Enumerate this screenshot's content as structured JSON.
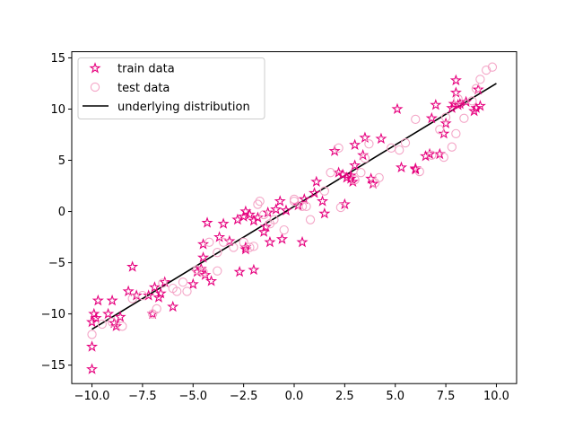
{
  "chart_data": {
    "type": "scatter",
    "title": "",
    "xlabel": "",
    "ylabel": "",
    "xlim": [
      -11.0,
      11.0
    ],
    "ylim": [
      -16.8,
      15.6
    ],
    "xticks": [
      -10.0,
      -7.5,
      -5.0,
      -2.5,
      0.0,
      2.5,
      5.0,
      7.5,
      10.0
    ],
    "xtick_labels": [
      "−10.0",
      "−7.5",
      "−5.0",
      "−2.5",
      "0.0",
      "2.5",
      "5.0",
      "7.5",
      "10.0"
    ],
    "yticks": [
      -15,
      -10,
      -5,
      0,
      5,
      10,
      15
    ],
    "ytick_labels": [
      "−15",
      "−10",
      "−5",
      "0",
      "5",
      "10",
      "15"
    ],
    "grid": false,
    "legend_position": "top-left",
    "colors": {
      "train": "#e6007e",
      "test": "#f4a6c7",
      "line": "#000000"
    },
    "series": [
      {
        "name": "train data",
        "marker": "star",
        "points": [
          [
            -10.0,
            -15.4
          ],
          [
            -10.0,
            -13.2
          ],
          [
            -10.0,
            -10.8
          ],
          [
            -9.9,
            -10.0
          ],
          [
            -9.7,
            -8.7
          ],
          [
            -9.8,
            -10.4
          ],
          [
            -9.2,
            -10.0
          ],
          [
            -9.0,
            -8.7
          ],
          [
            -8.8,
            -11.2
          ],
          [
            -8.9,
            -10.9
          ],
          [
            -8.6,
            -10.3
          ],
          [
            -8.2,
            -7.8
          ],
          [
            -8.0,
            -5.4
          ],
          [
            -7.8,
            -8.2
          ],
          [
            -7.2,
            -8.2
          ],
          [
            -7.0,
            -10.0
          ],
          [
            -6.9,
            -7.4
          ],
          [
            -6.7,
            -8.4
          ],
          [
            -6.6,
            -8.0
          ],
          [
            -6.4,
            -6.9
          ],
          [
            -6.0,
            -9.3
          ],
          [
            -5.0,
            -7.1
          ],
          [
            -4.8,
            -5.9
          ],
          [
            -4.6,
            -5.6
          ],
          [
            -4.4,
            -6.2
          ],
          [
            -4.5,
            -4.5
          ],
          [
            -4.5,
            -3.2
          ],
          [
            -4.3,
            -1.1
          ],
          [
            -4.1,
            -6.8
          ],
          [
            -3.7,
            -2.5
          ],
          [
            -3.5,
            -1.2
          ],
          [
            -3.2,
            -2.9
          ],
          [
            -2.8,
            -0.8
          ],
          [
            -2.7,
            -5.9
          ],
          [
            -2.5,
            -0.5
          ],
          [
            -2.4,
            0.0
          ],
          [
            -2.4,
            -3.5
          ],
          [
            -2.4,
            -3.7
          ],
          [
            -2.2,
            -0.3
          ],
          [
            -2.0,
            -5.7
          ],
          [
            -2.0,
            -0.9
          ],
          [
            -1.8,
            -0.6
          ],
          [
            -1.5,
            -2.0
          ],
          [
            -1.4,
            -1.5
          ],
          [
            -1.3,
            -0.1
          ],
          [
            -1.2,
            -3.0
          ],
          [
            -0.9,
            0.2
          ],
          [
            -0.7,
            1.0
          ],
          [
            -0.6,
            -2.7
          ],
          [
            -0.4,
            0.1
          ],
          [
            0.2,
            0.6
          ],
          [
            0.4,
            -3.0
          ],
          [
            0.5,
            1.2
          ],
          [
            1.0,
            1.8
          ],
          [
            1.1,
            2.9
          ],
          [
            1.4,
            1.0
          ],
          [
            1.5,
            -0.2
          ],
          [
            2.0,
            5.9
          ],
          [
            2.2,
            3.8
          ],
          [
            2.4,
            3.6
          ],
          [
            2.6,
            3.3
          ],
          [
            2.5,
            0.7
          ],
          [
            2.8,
            3.2
          ],
          [
            2.8,
            3.5
          ],
          [
            2.9,
            2.9
          ],
          [
            3.0,
            4.5
          ],
          [
            3.0,
            6.5
          ],
          [
            3.4,
            5.5
          ],
          [
            3.5,
            7.2
          ],
          [
            3.8,
            3.2
          ],
          [
            3.9,
            2.7
          ],
          [
            4.3,
            7.1
          ],
          [
            5.1,
            10.0
          ],
          [
            5.3,
            4.3
          ],
          [
            6.0,
            4.2
          ],
          [
            6.0,
            4.1
          ],
          [
            6.5,
            5.4
          ],
          [
            6.7,
            5.6
          ],
          [
            6.8,
            9.1
          ],
          [
            7.0,
            10.4
          ],
          [
            7.2,
            5.6
          ],
          [
            7.4,
            7.6
          ],
          [
            7.5,
            8.6
          ],
          [
            7.8,
            10.1
          ],
          [
            7.9,
            10.5
          ],
          [
            8.0,
            12.8
          ],
          [
            8.0,
            11.6
          ],
          [
            8.1,
            10.4
          ],
          [
            8.2,
            10.5
          ],
          [
            8.5,
            10.7
          ],
          [
            8.9,
            9.8
          ],
          [
            9.0,
            10.1
          ],
          [
            9.1,
            11.9
          ],
          [
            9.2,
            10.3
          ]
        ]
      },
      {
        "name": "test data",
        "marker": "circle",
        "points": [
          [
            -10.0,
            -12.0
          ],
          [
            -9.5,
            -11.0
          ],
          [
            -9.0,
            -10.8
          ],
          [
            -8.5,
            -11.2
          ],
          [
            -8.0,
            -8.5
          ],
          [
            -7.5,
            -8.2
          ],
          [
            -7.0,
            -10.0
          ],
          [
            -6.8,
            -9.5
          ],
          [
            -6.5,
            -7.0
          ],
          [
            -6.0,
            -7.5
          ],
          [
            -5.8,
            -7.8
          ],
          [
            -5.5,
            -6.9
          ],
          [
            -5.3,
            -7.8
          ],
          [
            -4.8,
            -5.7
          ],
          [
            -4.5,
            -5.9
          ],
          [
            -4.2,
            -3.0
          ],
          [
            -3.8,
            -5.8
          ],
          [
            -3.8,
            -4.0
          ],
          [
            -3.5,
            -3.0
          ],
          [
            -3.0,
            -3.5
          ],
          [
            -2.5,
            -3.0
          ],
          [
            -2.2,
            -3.5
          ],
          [
            -2.0,
            -3.4
          ],
          [
            -1.8,
            0.7
          ],
          [
            -1.7,
            1.0
          ],
          [
            -1.5,
            -0.3
          ],
          [
            -1.2,
            -1.2
          ],
          [
            -1.0,
            -0.8
          ],
          [
            -0.5,
            -1.8
          ],
          [
            0.0,
            1.0
          ],
          [
            0.0,
            1.2
          ],
          [
            0.4,
            0.5
          ],
          [
            0.6,
            0.5
          ],
          [
            0.8,
            -0.8
          ],
          [
            1.5,
            2.0
          ],
          [
            1.8,
            3.8
          ],
          [
            2.2,
            6.2
          ],
          [
            2.3,
            0.4
          ],
          [
            3.0,
            3.1
          ],
          [
            3.3,
            3.8
          ],
          [
            3.5,
            5.2
          ],
          [
            3.7,
            6.6
          ],
          [
            4.0,
            2.8
          ],
          [
            4.2,
            3.3
          ],
          [
            4.8,
            6.2
          ],
          [
            5.2,
            6.0
          ],
          [
            5.5,
            6.7
          ],
          [
            6.0,
            9.0
          ],
          [
            6.2,
            3.9
          ],
          [
            6.8,
            5.5
          ],
          [
            7.2,
            8.0
          ],
          [
            7.4,
            5.3
          ],
          [
            7.5,
            9.2
          ],
          [
            7.8,
            6.3
          ],
          [
            8.0,
            7.6
          ],
          [
            8.1,
            11.0
          ],
          [
            8.4,
            9.1
          ],
          [
            8.8,
            10.8
          ],
          [
            9.0,
            12.0
          ],
          [
            9.2,
            12.9
          ],
          [
            9.5,
            13.8
          ],
          [
            9.8,
            14.1
          ]
        ]
      },
      {
        "name": "underlying distribution",
        "marker": "line",
        "points": [
          [
            -10.0,
            -11.5
          ],
          [
            10.0,
            12.5
          ]
        ]
      }
    ]
  }
}
